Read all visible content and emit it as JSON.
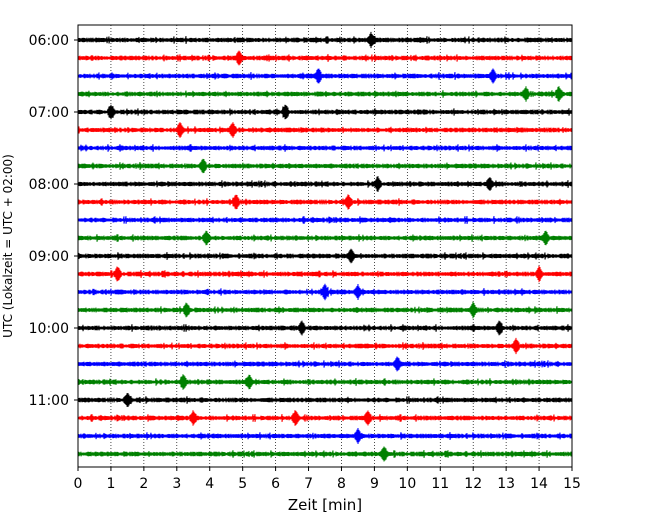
{
  "chart_data": {
    "type": "line",
    "subtype": "helicorder",
    "xlabel": "Zeit  [min]",
    "ylabel": "UTC (Lokalzeit = UTC + 02:00)",
    "xlim": [
      0,
      15
    ],
    "x_ticks": [
      0,
      1,
      2,
      3,
      4,
      5,
      6,
      7,
      8,
      9,
      10,
      11,
      12,
      13,
      14,
      15
    ],
    "x_tick_labels": [
      "0",
      "1",
      "2",
      "3",
      "4",
      "5",
      "6",
      "7",
      "8",
      "9",
      "10",
      "11",
      "12",
      "13",
      "14",
      "15"
    ],
    "grid": "vertical dotted",
    "y_tick_labels": [
      {
        "label": "06:00",
        "row": 0
      },
      {
        "label": "07:00",
        "row": 4
      },
      {
        "label": "08:00",
        "row": 8
      },
      {
        "label": "09:00",
        "row": 12
      },
      {
        "label": "10:00",
        "row": 16
      },
      {
        "label": "11:00",
        "row": 20
      }
    ],
    "trace_colors": [
      "#000000",
      "#ff0000",
      "#0000ff",
      "#008000"
    ],
    "traces": [
      {
        "start": "06:00",
        "color": "#000000",
        "events_min": [
          8.9
        ]
      },
      {
        "start": "06:15",
        "color": "#ff0000",
        "events_min": [
          4.9
        ]
      },
      {
        "start": "06:30",
        "color": "#0000ff",
        "events_min": [
          7.3,
          12.6
        ]
      },
      {
        "start": "06:45",
        "color": "#008000",
        "events_min": [
          13.6,
          14.6
        ]
      },
      {
        "start": "07:00",
        "color": "#000000",
        "events_min": [
          1.0,
          6.3
        ]
      },
      {
        "start": "07:15",
        "color": "#ff0000",
        "events_min": [
          3.1,
          4.7
        ]
      },
      {
        "start": "07:30",
        "color": "#0000ff",
        "events_min": []
      },
      {
        "start": "07:45",
        "color": "#008000",
        "events_min": [
          3.8
        ]
      },
      {
        "start": "08:00",
        "color": "#000000",
        "events_min": [
          9.1,
          12.5
        ]
      },
      {
        "start": "08:15",
        "color": "#ff0000",
        "events_min": [
          4.8,
          8.2
        ]
      },
      {
        "start": "08:30",
        "color": "#0000ff",
        "events_min": []
      },
      {
        "start": "08:45",
        "color": "#008000",
        "events_min": [
          3.9,
          14.2
        ]
      },
      {
        "start": "09:00",
        "color": "#000000",
        "events_min": [
          8.3
        ]
      },
      {
        "start": "09:15",
        "color": "#ff0000",
        "events_min": [
          1.2,
          14.0
        ]
      },
      {
        "start": "09:30",
        "color": "#0000ff",
        "events_min": [
          7.5,
          8.5
        ]
      },
      {
        "start": "09:45",
        "color": "#008000",
        "events_min": [
          3.3,
          12.0
        ]
      },
      {
        "start": "10:00",
        "color": "#000000",
        "events_min": [
          6.8,
          12.8
        ]
      },
      {
        "start": "10:15",
        "color": "#ff0000",
        "events_min": [
          13.3
        ]
      },
      {
        "start": "10:30",
        "color": "#0000ff",
        "events_min": [
          9.7
        ]
      },
      {
        "start": "10:45",
        "color": "#008000",
        "events_min": [
          3.2,
          5.2
        ]
      },
      {
        "start": "11:00",
        "color": "#000000",
        "events_min": [
          1.5
        ]
      },
      {
        "start": "11:15",
        "color": "#ff0000",
        "events_min": [
          3.5,
          6.6,
          8.8
        ]
      },
      {
        "start": "11:30",
        "color": "#0000ff",
        "events_min": [
          8.5
        ]
      },
      {
        "start": "11:45",
        "color": "#008000",
        "events_min": [
          9.3
        ]
      }
    ]
  }
}
